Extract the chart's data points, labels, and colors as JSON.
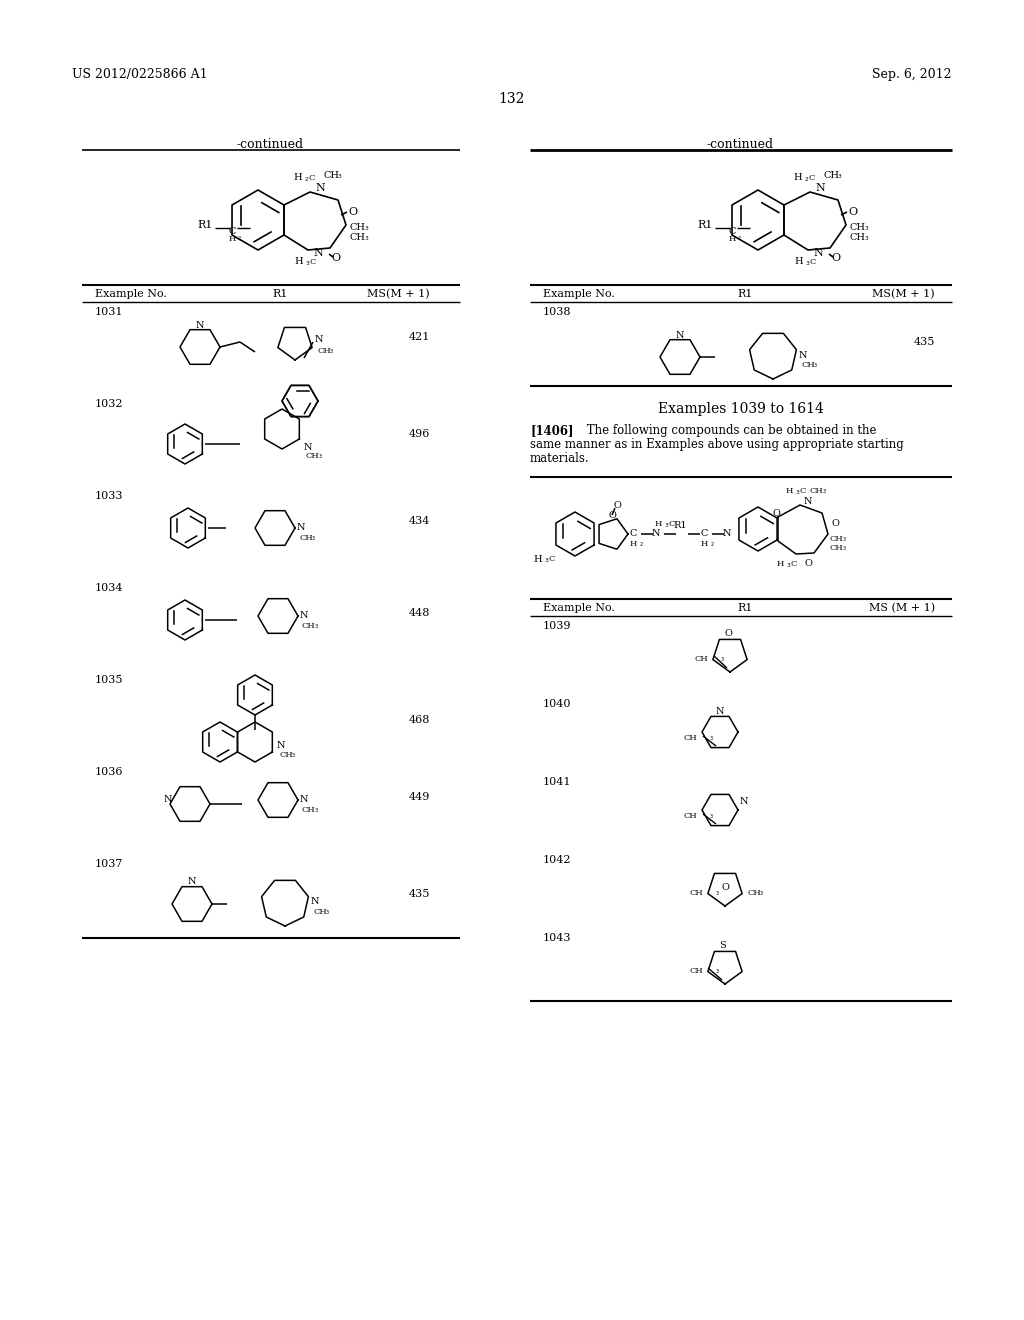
{
  "background_color": "#ffffff",
  "header_left": "US 2012/0225866 A1",
  "header_right": "Sep. 6, 2012",
  "page_number": "132",
  "left_continued": "-continued",
  "right_continued": "-continued",
  "section_header": "Examples 1039 to 1614",
  "section_text_bold": "[1406]",
  "section_text_body": "  The following compounds can be obtained in the\nsame manner as in Examples above using appropriate starting\nmaterials.",
  "left_examples": [
    {
      "no": "1031",
      "ms": "421"
    },
    {
      "no": "1032",
      "ms": "496"
    },
    {
      "no": "1033",
      "ms": "434"
    },
    {
      "no": "1034",
      "ms": "448"
    },
    {
      "no": "1035",
      "ms": "468"
    },
    {
      "no": "1036",
      "ms": "449"
    },
    {
      "no": "1037",
      "ms": "435"
    }
  ],
  "right_top_examples": [
    {
      "no": "1038",
      "ms": "435"
    }
  ],
  "right_bottom_examples": [
    {
      "no": "1039"
    },
    {
      "no": "1040"
    },
    {
      "no": "1041"
    },
    {
      "no": "1042"
    },
    {
      "no": "1043"
    }
  ]
}
